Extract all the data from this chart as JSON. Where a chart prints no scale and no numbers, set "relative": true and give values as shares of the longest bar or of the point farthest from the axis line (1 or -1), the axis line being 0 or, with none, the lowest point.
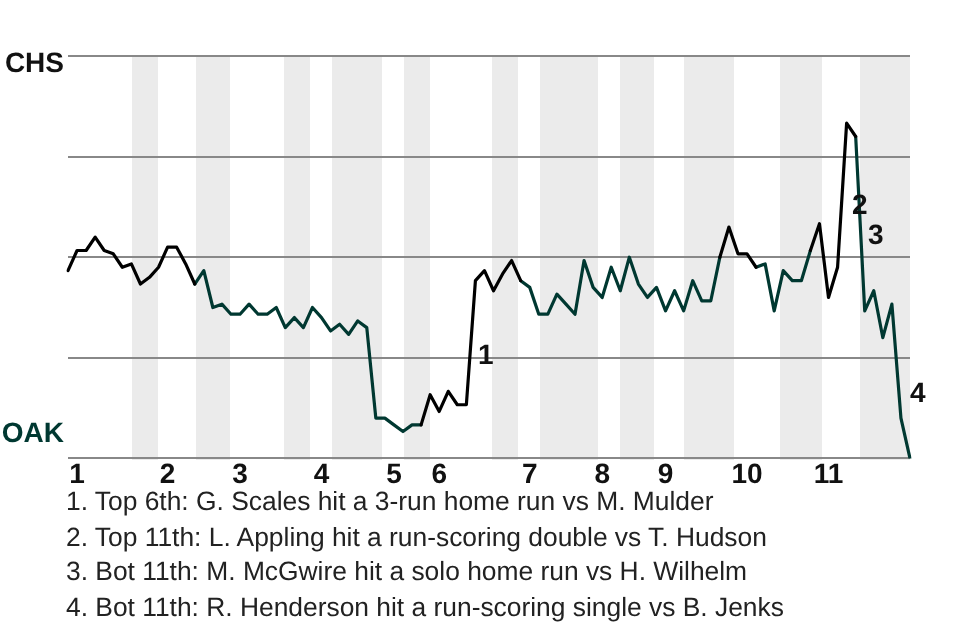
{
  "chart_data": {
    "type": "line",
    "relative": true,
    "categories": [
      null,
      "1",
      null,
      null,
      null,
      null,
      null,
      null,
      null,
      null,
      null,
      "2",
      null,
      null,
      null,
      null,
      null,
      null,
      null,
      "3",
      null,
      null,
      null,
      null,
      null,
      null,
      null,
      null,
      "4",
      null,
      null,
      null,
      null,
      null,
      null,
      null,
      "5",
      null,
      null,
      null,
      null,
      "6",
      null,
      null,
      null,
      null,
      null,
      null,
      null,
      null,
      null,
      "7",
      null,
      null,
      null,
      null,
      null,
      null,
      null,
      "8",
      null,
      null,
      null,
      null,
      null,
      null,
      "9",
      null,
      null,
      null,
      null,
      null,
      null,
      null,
      null,
      "10",
      null,
      null,
      null,
      null,
      null,
      null,
      null,
      null,
      "11",
      null,
      null,
      null,
      null,
      null,
      null,
      null,
      null,
      null
    ],
    "series": [
      {
        "color": "#000000",
        "values": [
          0.56,
          0.62,
          0.62,
          0.66,
          0.62,
          0.61,
          0.57,
          0.58,
          0.52,
          0.54,
          0.57,
          0.63,
          0.63,
          0.58,
          0.52,
          null,
          null,
          null,
          null,
          null,
          null,
          null,
          null,
          null,
          null,
          null,
          null,
          null,
          null,
          null,
          null,
          null,
          null,
          null,
          null,
          null,
          null,
          null,
          null,
          0.1,
          0.19,
          0.14,
          0.2,
          0.16,
          0.16,
          0.53,
          0.56,
          0.5,
          0.55,
          0.59,
          0.53,
          null,
          null,
          null,
          null,
          null,
          null,
          null,
          null,
          null,
          null,
          null,
          null,
          null,
          null,
          null,
          null,
          null,
          null,
          null,
          null,
          null,
          0.6,
          0.69,
          0.61,
          0.61,
          0.57,
          null,
          null,
          null,
          null,
          null,
          0.62,
          0.7,
          0.48,
          0.57,
          1,
          0.96,
          null,
          null,
          null,
          null,
          null,
          null
        ]
      },
      {
        "color": "#003831",
        "values": [
          null,
          null,
          null,
          null,
          null,
          null,
          null,
          null,
          null,
          null,
          null,
          null,
          null,
          null,
          0.52,
          0.56,
          0.45,
          0.46,
          0.43,
          0.43,
          0.46,
          0.43,
          0.43,
          0.45,
          0.39,
          0.42,
          0.39,
          0.45,
          0.42,
          0.38,
          0.4,
          0.37,
          0.41,
          0.39,
          0.12,
          0.12,
          0.1,
          0.08,
          0.1,
          0.1,
          null,
          null,
          null,
          null,
          null,
          null,
          null,
          null,
          null,
          null,
          0.53,
          0.51,
          0.43,
          0.43,
          0.49,
          0.46,
          0.43,
          0.59,
          0.51,
          0.48,
          0.57,
          0.5,
          0.6,
          0.52,
          0.48,
          0.51,
          0.44,
          0.5,
          0.44,
          0.53,
          0.47,
          0.47,
          0.6,
          null,
          null,
          null,
          0.57,
          0.58,
          0.44,
          0.56,
          0.53,
          0.53,
          0.62,
          null,
          null,
          null,
          null,
          0.96,
          0.44,
          0.5,
          0.36,
          0.46,
          0.12,
          0
        ]
      }
    ],
    "grid": "y",
    "legend": false,
    "marker": "none",
    "line_style": "solid",
    "annotations": [
      "CHS",
      "OAK",
      "1",
      "2",
      "3",
      "4",
      "1. Top 6th: G. Scales hit a 3-run home run vs M. Mulder",
      "2. Top 11th: L. Appling hit a run-scoring double vs T. Hudson",
      "3. Bot 11th: M. McGwire hit a solo home run vs H. Wilhelm",
      "4. Bot 11th: R. Henderson hit a run-scoring single vs B. Jenks"
    ]
  }
}
